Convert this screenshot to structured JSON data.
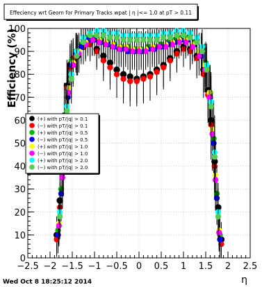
{
  "chart_data": {
    "type": "scatter",
    "title": "Effeciency wrt Geom for Primary Tracks wpat | η |<= 1.0 at pT > 0.11",
    "xlabel": "η",
    "ylabel": "Efficiency (%)",
    "xlim": [
      -2.5,
      2.5
    ],
    "ylim": [
      0,
      100
    ],
    "x_ticks": [
      "−2.5",
      "−2",
      "−1.5",
      "−1",
      "−0.5",
      "0",
      "0.5",
      "1",
      "1.5",
      "2",
      "2.5"
    ],
    "y_ticks": [
      "0",
      "10",
      "20",
      "30",
      "40",
      "50",
      "60",
      "70",
      "80",
      "90",
      "100"
    ],
    "grid": true,
    "legend_position": "left-middle",
    "series": [
      {
        "name": "(+) with pT/|q| > 0.1",
        "color": "#000000",
        "x": [
          -1.85,
          -1.78,
          -1.72,
          -1.68,
          -1.62,
          -1.55,
          -1.48,
          -1.38,
          -1.25,
          -1.1,
          -0.95,
          -0.8,
          -0.65,
          -0.5,
          -0.35,
          -0.2,
          -0.05,
          0.1,
          0.25,
          0.4,
          0.55,
          0.7,
          0.85,
          1.0,
          1.15,
          1.3,
          1.45,
          1.55,
          1.62,
          1.7,
          1.78,
          1.85
        ],
        "y": [
          10,
          25,
          45,
          62,
          75,
          84,
          86,
          88,
          92,
          94,
          91,
          88,
          85,
          82,
          80,
          79,
          78,
          79,
          80,
          82,
          84,
          87,
          90,
          92,
          91,
          88,
          82,
          73,
          60,
          42,
          22,
          8
        ]
      },
      {
        "name": "(−) with pT/|q| > 0.1",
        "color": "#ff0000",
        "x": [
          -1.85,
          -1.78,
          -1.72,
          -1.68,
          -1.62,
          -1.55,
          -1.48,
          -1.38,
          -1.25,
          -1.1,
          -0.95,
          -0.8,
          -0.65,
          -0.5,
          -0.35,
          -0.2,
          -0.05,
          0.1,
          0.25,
          0.4,
          0.55,
          0.7,
          0.85,
          1.0,
          1.15,
          1.3,
          1.45,
          1.55,
          1.62,
          1.7,
          1.78,
          1.85
        ],
        "y": [
          8,
          22,
          42,
          60,
          74,
          83,
          87,
          89,
          92,
          93,
          90,
          86,
          83,
          80,
          78,
          77,
          77,
          78,
          79,
          81,
          83,
          86,
          89,
          91,
          90,
          87,
          80,
          71,
          58,
          40,
          20,
          6
        ]
      },
      {
        "name": "(+) with pT/|q| > 0.5",
        "color": "#00bb00",
        "x": [
          -1.82,
          -1.75,
          -1.68,
          -1.6,
          -1.52,
          -1.42,
          -1.3,
          -1.15,
          -1.0,
          -0.85,
          -0.7,
          -0.55,
          -0.4,
          -0.25,
          -0.1,
          0.05,
          0.2,
          0.35,
          0.5,
          0.65,
          0.8,
          0.95,
          1.1,
          1.25,
          1.4,
          1.5,
          1.6,
          1.68,
          1.75,
          1.82
        ],
        "y": [
          12,
          30,
          55,
          72,
          86,
          90,
          93,
          96,
          96,
          95,
          94,
          93,
          92,
          92,
          91,
          91,
          92,
          92,
          93,
          94,
          95,
          96,
          96,
          94,
          90,
          85,
          72,
          52,
          28,
          10
        ]
      },
      {
        "name": "(−) with pT/|q| > 0.5",
        "color": "#0000ff",
        "x": [
          -1.82,
          -1.75,
          -1.68,
          -1.6,
          -1.52,
          -1.42,
          -1.3,
          -1.15,
          -1.0,
          -0.85,
          -0.7,
          -0.55,
          -0.4,
          -0.25,
          -0.1,
          0.05,
          0.2,
          0.35,
          0.5,
          0.65,
          0.8,
          0.95,
          1.1,
          1.25,
          1.4,
          1.5,
          1.6,
          1.68,
          1.75,
          1.82
        ],
        "y": [
          10,
          28,
          52,
          70,
          84,
          89,
          92,
          95,
          95,
          94,
          93,
          92,
          91,
          90,
          90,
          90,
          91,
          91,
          92,
          93,
          94,
          95,
          95,
          93,
          88,
          82,
          70,
          50,
          26,
          8
        ]
      },
      {
        "name": "(+) with pT/|q| > 1.0",
        "color": "#ffff00",
        "x": [
          -1.8,
          -1.72,
          -1.65,
          -1.58,
          -1.48,
          -1.35,
          -1.2,
          -1.05,
          -0.9,
          -0.75,
          -0.6,
          -0.45,
          -0.3,
          -0.15,
          0.0,
          0.15,
          0.3,
          0.45,
          0.6,
          0.75,
          0.9,
          1.05,
          1.2,
          1.35,
          1.48,
          1.58,
          1.65,
          1.72,
          1.8
        ],
        "y": [
          15,
          38,
          60,
          74,
          85,
          90,
          94,
          95,
          95,
          94,
          93,
          92,
          92,
          91,
          91,
          91,
          92,
          92,
          93,
          94,
          95,
          95,
          93,
          90,
          84,
          72,
          56,
          36,
          12
        ]
      },
      {
        "name": "(−) with pT/|q| > 1.0",
        "color": "#ff00ff",
        "x": [
          -1.8,
          -1.72,
          -1.65,
          -1.58,
          -1.48,
          -1.35,
          -1.2,
          -1.05,
          -0.9,
          -0.75,
          -0.6,
          -0.45,
          -0.3,
          -0.15,
          0.0,
          0.15,
          0.3,
          0.45,
          0.6,
          0.75,
          0.9,
          1.05,
          1.2,
          1.35,
          1.48,
          1.58,
          1.65,
          1.72,
          1.8
        ],
        "y": [
          14,
          35,
          58,
          72,
          84,
          89,
          93,
          95,
          94,
          93,
          92,
          91,
          91,
          90,
          90,
          90,
          91,
          92,
          92,
          93,
          94,
          94,
          92,
          88,
          82,
          70,
          54,
          34,
          11
        ]
      },
      {
        "name": "(+) with pT/|q| > 2.0",
        "color": "#00ffff",
        "x": [
          -1.78,
          -1.7,
          -1.62,
          -1.52,
          -1.4,
          -1.25,
          -1.1,
          -0.95,
          -0.8,
          -0.65,
          -0.5,
          -0.35,
          -0.2,
          -0.05,
          0.1,
          0.25,
          0.4,
          0.55,
          0.7,
          0.85,
          1.0,
          1.15,
          1.3,
          1.42,
          1.52,
          1.62,
          1.7,
          1.78
        ],
        "y": [
          20,
          45,
          66,
          80,
          90,
          96,
          98,
          99,
          99,
          98,
          98,
          97,
          97,
          97,
          97,
          97,
          97,
          98,
          98,
          99,
          99,
          98,
          96,
          92,
          84,
          68,
          46,
          20
        ]
      },
      {
        "name": "(−) with pT/|q| > 2.0",
        "color": "#55cc55",
        "x": [
          -1.78,
          -1.7,
          -1.62,
          -1.52,
          -1.4,
          -1.25,
          -1.1,
          -0.95,
          -0.8,
          -0.65,
          -0.5,
          -0.35,
          -0.2,
          -0.05,
          0.1,
          0.25,
          0.4,
          0.55,
          0.7,
          0.85,
          1.0,
          1.15,
          1.3,
          1.42,
          1.52,
          1.62,
          1.7,
          1.78
        ],
        "y": [
          18,
          42,
          64,
          78,
          88,
          94,
          97,
          97,
          97,
          96,
          96,
          95,
          95,
          95,
          95,
          95,
          95,
          96,
          96,
          97,
          97,
          96,
          94,
          90,
          82,
          66,
          44,
          18
        ]
      }
    ]
  },
  "footer": {
    "timestamp": "Wed Oct  8 18:25:12 2014"
  }
}
